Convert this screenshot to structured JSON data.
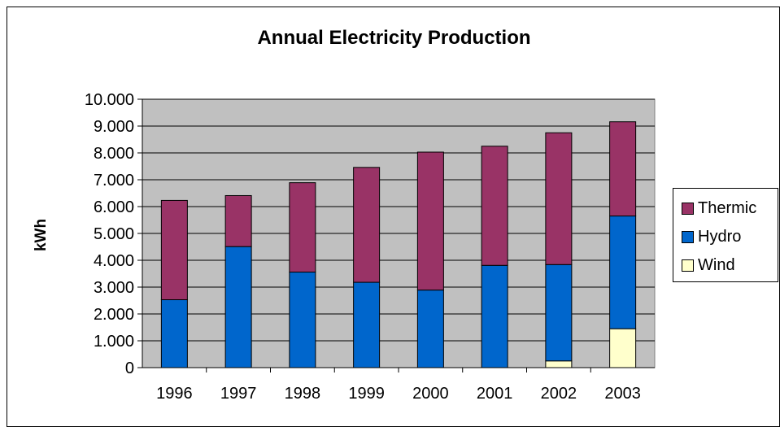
{
  "chart_data": {
    "type": "bar",
    "stacked": true,
    "title": "Annual Electricity Production",
    "xlabel": "",
    "ylabel": "kWh",
    "ylim": [
      0,
      10000
    ],
    "yticks": [
      "0",
      "1.000",
      "2.000",
      "3.000",
      "4.000",
      "5.000",
      "6.000",
      "7.000",
      "8.000",
      "9.000",
      "10.000"
    ],
    "categories": [
      "1996",
      "1997",
      "1998",
      "1999",
      "2000",
      "2001",
      "2002",
      "2003"
    ],
    "grid": true,
    "legend_position": "right",
    "plot_background": "#c0c0c0",
    "series": [
      {
        "name": "Wind",
        "color": "#ffffcc",
        "values": [
          0,
          0,
          0,
          0,
          0,
          0,
          250,
          1450
        ]
      },
      {
        "name": "Hydro",
        "color": "#0066cc",
        "values": [
          2530,
          4510,
          3560,
          3180,
          2890,
          3810,
          3590,
          4200
        ]
      },
      {
        "name": "Thermic",
        "color": "#993366",
        "values": [
          3700,
          1900,
          3330,
          4280,
          5140,
          4440,
          4910,
          3510
        ]
      }
    ],
    "legend_order": [
      "Thermic",
      "Hydro",
      "Wind"
    ]
  }
}
